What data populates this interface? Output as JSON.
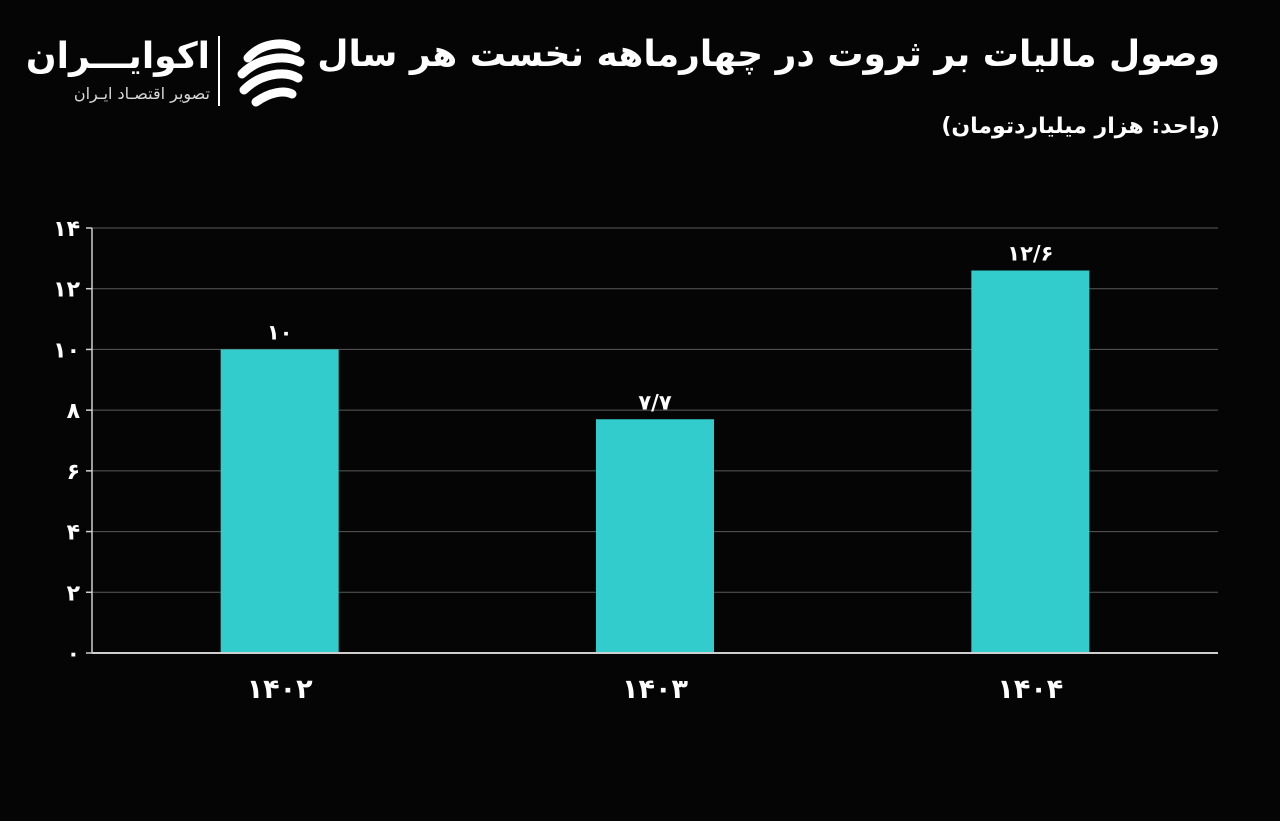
{
  "header": {
    "title": "وصول مالیات بر ثروت در چهارماهه نخست هر سال",
    "subtitle": "(واحد: هزار میلیاردتومان)"
  },
  "brand": {
    "name": "اکوایـــران",
    "tagline": "تصویر اقتصـاد ایـران",
    "logo_icon": "ecoiran-logo-icon"
  },
  "colors": {
    "background": "#050505",
    "bar": "#33cccc",
    "grid": "#5a5a5a",
    "text": "#ffffff"
  },
  "chart_data": {
    "type": "bar",
    "title": "وصول مالیات بر ثروت در چهارماهه نخست هر سال",
    "subtitle": "(واحد: هزار میلیاردتومان)",
    "xlabel": "",
    "ylabel": "",
    "categories": [
      "۱۴۰۲",
      "۱۴۰۳",
      "۱۴۰۴"
    ],
    "values": [
      10,
      7.7,
      12.6
    ],
    "value_labels": [
      "۱۰",
      "۷/۷",
      "۱۲/۶"
    ],
    "ylim": [
      0,
      14
    ],
    "yticks": [
      0,
      2,
      4,
      6,
      8,
      10,
      12,
      14
    ],
    "ytick_labels": [
      "۰",
      "۲",
      "۴",
      "۶",
      "۸",
      "۱۰",
      "۱۲",
      "۱۴"
    ],
    "grid": true,
    "legend": "none"
  }
}
